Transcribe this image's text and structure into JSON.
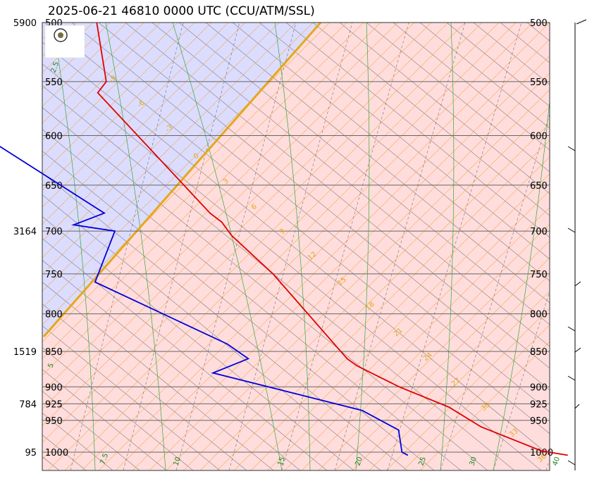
{
  "chart_data": {
    "type": "line",
    "title": "2025-06-21 46810 0000 UTC (CCU/ATM/SSL)",
    "pressure_levels": [
      500,
      550,
      600,
      650,
      700,
      750,
      800,
      850,
      900,
      925,
      950,
      1000
    ],
    "height_labels": [
      {
        "p": 500,
        "height": "5900"
      },
      {
        "p": 700,
        "height": "3164"
      },
      {
        "p": 850,
        "height": "1519"
      },
      {
        "p": 925,
        "height": "784"
      },
      {
        "p": 1000,
        "height": "95"
      }
    ],
    "series": [
      {
        "name": "",
        "role": "temperature",
        "color": "#e00000",
        "points": [
          [
            500,
            -6.5
          ],
          [
            550,
            -9.1
          ],
          [
            560,
            -10.8
          ],
          [
            680,
            -5.3
          ],
          [
            690,
            -4.5
          ],
          [
            705,
            -4.2
          ],
          [
            750,
            -1.8
          ],
          [
            860,
            1.5
          ],
          [
            870,
            2.2
          ],
          [
            900,
            5.8
          ],
          [
            930,
            10.3
          ],
          [
            960,
            12.8
          ],
          [
            998,
            18.3
          ],
          [
            1005,
            21.1
          ]
        ]
      },
      {
        "name": "",
        "role": "dewpoint",
        "color": "#0000e0",
        "points": [
          [
            500,
            -30.0
          ],
          [
            547,
            -39.0
          ],
          [
            567,
            -29.7
          ],
          [
            575,
            -30.0
          ],
          [
            680,
            -17.6
          ],
          [
            693,
            -21.9
          ],
          [
            700,
            -17.5
          ],
          [
            760,
            -23.0
          ],
          [
            840,
            -11.5
          ],
          [
            860,
            -10.0
          ],
          [
            880,
            -15.0
          ],
          [
            935,
            0.0
          ],
          [
            965,
            3.0
          ],
          [
            1000,
            2.0
          ],
          [
            1005,
            2.5
          ]
        ]
      }
    ],
    "isotherm_labels": [
      "-9",
      "-6",
      "-3",
      "0",
      "3",
      "6",
      "9",
      "12",
      "15",
      "18",
      "21",
      "24",
      "27",
      "30",
      "33",
      "36"
    ],
    "green_line_labels": [
      "2.5",
      "5",
      "7.5",
      "10",
      "15",
      "20",
      "25",
      "30",
      "40"
    ],
    "cape_color": "#ffdddd",
    "cin_color": "#dcdcff",
    "parcel_color": "#e6a817",
    "grid": true
  }
}
